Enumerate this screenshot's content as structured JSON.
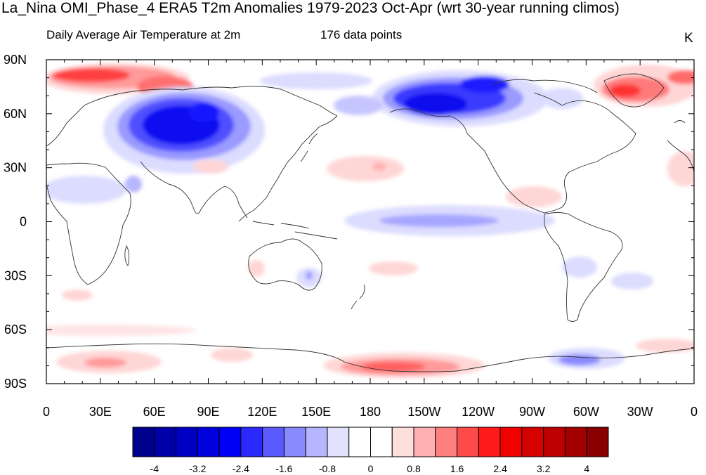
{
  "title": "La_Nina OMI_Phase_4 ERA5 T2m Anomalies 1979-2023 Oct-Apr (wrt 30-year running climos)",
  "subtitle_left": "Daily Average Air Temperature at 2m",
  "subtitle_center": "176 data points",
  "units": "K",
  "lat_labels": [
    "90N",
    "60N",
    "30N",
    "0",
    "30S",
    "60S",
    "90S"
  ],
  "lon_labels": [
    "0",
    "30E",
    "60E",
    "90E",
    "120E",
    "150E",
    "180",
    "150W",
    "120W",
    "90W",
    "60W",
    "30W",
    "0"
  ],
  "colorbar": {
    "labels": [
      "-4",
      "-3.2",
      "-2.4",
      "-1.6",
      "-0.8",
      "0",
      "0.8",
      "1.6",
      "2.4",
      "3.2",
      "4"
    ],
    "colors": [
      "#00008f",
      "#0000a8",
      "#0000c4",
      "#0000dd",
      "#0000f5",
      "#2a2aff",
      "#5a5aff",
      "#8a8aff",
      "#b6b6ff",
      "#e2e2ff",
      "#ffffff",
      "#ffffff",
      "#ffdede",
      "#ffb0b0",
      "#ff7e7e",
      "#ff4a4a",
      "#ff1a1a",
      "#f00000",
      "#d60000",
      "#bd0000",
      "#a30000",
      "#880000"
    ]
  },
  "colors": {
    "strong_cold": "#0000e0",
    "cold": "#4a4aff",
    "weak_cold": "#dcdcff",
    "strong_warm": "#e00000",
    "warm": "#ff6060",
    "weak_warm": "#ffd6d6",
    "coastline": "#333333"
  }
}
